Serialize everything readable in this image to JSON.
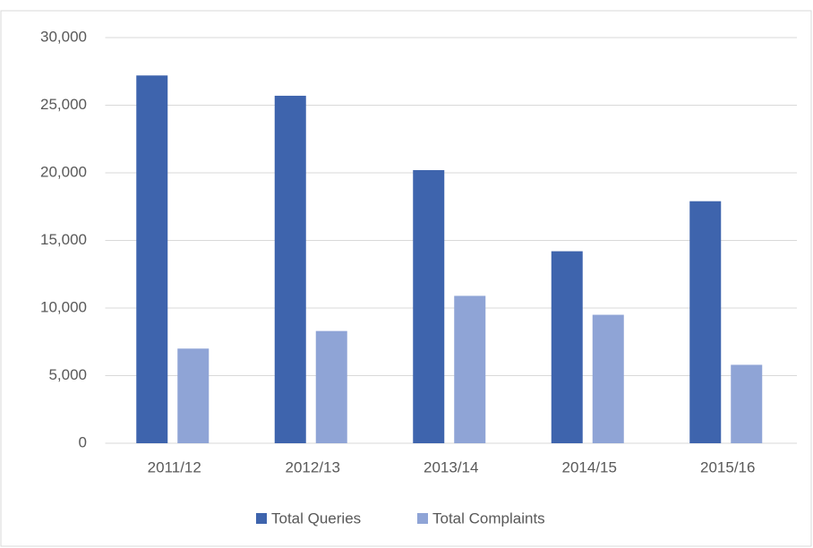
{
  "chart_data": {
    "type": "bar",
    "categories": [
      "2011/12",
      "2012/13",
      "2013/14",
      "2014/15",
      "2015/16"
    ],
    "series": [
      {
        "name": "Total Queries",
        "color": "#3e64ad",
        "values": [
          27200,
          25700,
          20200,
          14200,
          17900
        ]
      },
      {
        "name": "Total Complaints",
        "color": "#8fa4d6",
        "values": [
          7000,
          8300,
          10900,
          9500,
          5800
        ]
      }
    ],
    "ylim": [
      0,
      30000
    ],
    "yticks": [
      0,
      {
        "value": 5000,
        "label": "5,000"
      },
      {
        "value": 10000,
        "label": "10,000"
      },
      {
        "value": 15000,
        "label": "15,000"
      },
      {
        "value": 20000,
        "label": "20,000"
      },
      {
        "value": 25000,
        "label": "25,000"
      },
      {
        "value": 30000,
        "label": "30,000"
      }
    ],
    "grid": true,
    "legend": "bottom"
  }
}
